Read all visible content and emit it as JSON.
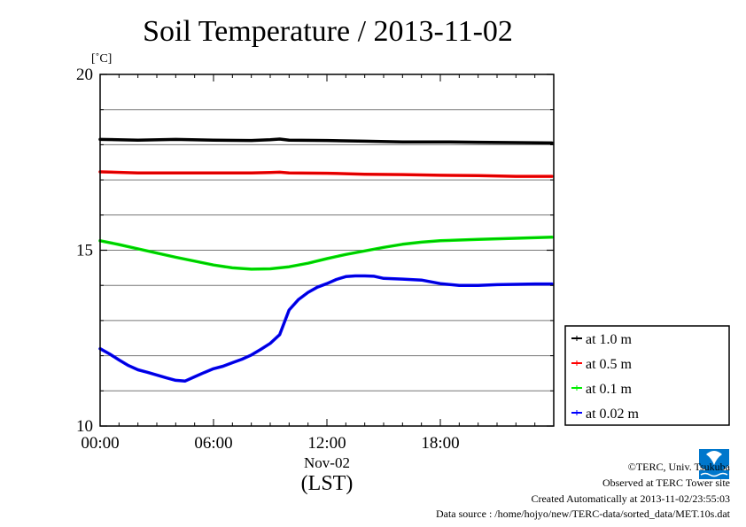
{
  "chart_data": {
    "type": "line",
    "title": "Soil Temperature / 2013-11-02",
    "ylabel": "[˚C]",
    "xlabel": "(LST)",
    "x_date_label": "Nov-02",
    "xlim": [
      0,
      24
    ],
    "ylim": [
      10,
      20
    ],
    "x_ticks": [
      {
        "value": 0,
        "label": "00:00"
      },
      {
        "value": 6,
        "label": "06:00"
      },
      {
        "value": 12,
        "label": "12:00"
      },
      {
        "value": 18,
        "label": "18:00"
      }
    ],
    "y_ticks": [
      {
        "value": 10,
        "label": "10"
      },
      {
        "value": 15,
        "label": "15"
      },
      {
        "value": 20,
        "label": "20"
      }
    ],
    "gridlines_y": [
      11,
      12,
      13,
      14,
      15,
      16,
      17,
      18,
      19
    ],
    "legend_position": "right",
    "series": [
      {
        "name": "at 1.0 m",
        "color": "#000000",
        "x": [
          0,
          2,
          4,
          6,
          8,
          9,
          9.5,
          10,
          12,
          14,
          16,
          18,
          20,
          22,
          23.9
        ],
        "y": [
          18.15,
          18.13,
          18.15,
          18.13,
          18.12,
          18.14,
          18.16,
          18.13,
          18.12,
          18.1,
          18.08,
          18.08,
          18.07,
          18.06,
          18.05
        ]
      },
      {
        "name": "at 0.5 m",
        "color": "#ff0000",
        "x": [
          0,
          2,
          4,
          6,
          8,
          9,
          9.5,
          10,
          12,
          14,
          16,
          18,
          20,
          22,
          23.9
        ],
        "y": [
          17.23,
          17.2,
          17.2,
          17.2,
          17.2,
          17.21,
          17.22,
          17.2,
          17.19,
          17.16,
          17.15,
          17.13,
          17.12,
          17.1,
          17.1
        ]
      },
      {
        "name": "at 0.1 m",
        "color": "#00ee00",
        "x": [
          0,
          1,
          2,
          3,
          4,
          5,
          6,
          7,
          8,
          9,
          10,
          11,
          12,
          13,
          14,
          15,
          16,
          17,
          18,
          20,
          22,
          23.9
        ],
        "y": [
          15.27,
          15.16,
          15.04,
          14.92,
          14.8,
          14.69,
          14.58,
          14.5,
          14.46,
          14.47,
          14.53,
          14.63,
          14.76,
          14.88,
          14.98,
          15.08,
          15.17,
          15.23,
          15.27,
          15.31,
          15.34,
          15.37
        ]
      },
      {
        "name": "at 0.02 m",
        "color": "#0000ff",
        "x": [
          0,
          0.5,
          1,
          1.5,
          2,
          2.5,
          3,
          3.5,
          4,
          4.5,
          5,
          5.5,
          6,
          6.5,
          7,
          7.5,
          8,
          8.5,
          9,
          9.5,
          10,
          10.5,
          11,
          11.5,
          12,
          12.5,
          13,
          13.5,
          14,
          14.5,
          15,
          16,
          17,
          18,
          19,
          20,
          21,
          22,
          23,
          23.9
        ],
        "y": [
          12.2,
          12.05,
          11.88,
          11.72,
          11.6,
          11.53,
          11.45,
          11.37,
          11.3,
          11.28,
          11.4,
          11.52,
          11.63,
          11.7,
          11.8,
          11.9,
          12.02,
          12.18,
          12.35,
          12.6,
          13.3,
          13.6,
          13.8,
          13.95,
          14.05,
          14.17,
          14.25,
          14.27,
          14.27,
          14.26,
          14.2,
          14.18,
          14.15,
          14.05,
          14.0,
          14.0,
          14.02,
          14.03,
          14.04,
          14.04
        ]
      }
    ]
  },
  "credits": {
    "copyright": "©TERC, Univ. Tsukuba",
    "observed": "Observed at TERC Tower site",
    "created": "Created Automatically at 2013-11-02/23:55:03",
    "source": "Data source : /home/hojyo/new/TERC-data/sorted_data/MET.10s.dat"
  },
  "logo": {
    "name": "terc-logo",
    "text": "TERC",
    "color": "#0077cc"
  }
}
